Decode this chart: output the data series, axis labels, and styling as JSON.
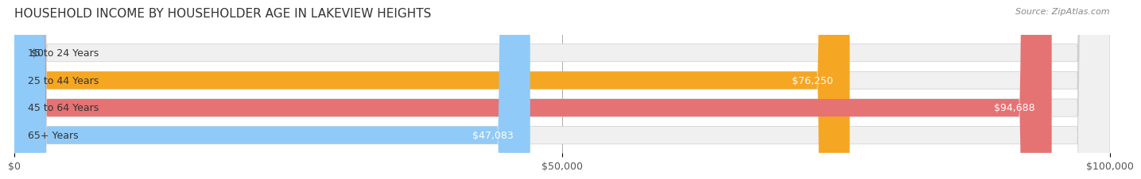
{
  "title": "HOUSEHOLD INCOME BY HOUSEHOLDER AGE IN LAKEVIEW HEIGHTS",
  "source": "Source: ZipAtlas.com",
  "categories": [
    "15 to 24 Years",
    "25 to 44 Years",
    "45 to 64 Years",
    "65+ Years"
  ],
  "values": [
    0,
    76250,
    94688,
    47083
  ],
  "bar_colors": [
    "#f48fb1",
    "#f5a623",
    "#e57373",
    "#90caf9"
  ],
  "bar_edge_colors": [
    "#e91e8c",
    "#e09015",
    "#c0392b",
    "#5b9bd5"
  ],
  "bg_colors": [
    "#f5f5f5",
    "#f5f5f5",
    "#f5f5f5",
    "#f5f5f5"
  ],
  "xlim": [
    0,
    100000
  ],
  "xticks": [
    0,
    50000,
    100000
  ],
  "xtick_labels": [
    "$0",
    "$50,000",
    "$100,000"
  ],
  "value_labels": [
    "$0",
    "$76,250",
    "$94,688",
    "$47,083"
  ],
  "title_fontsize": 11,
  "source_fontsize": 8,
  "label_fontsize": 9,
  "tick_fontsize": 9,
  "bar_height": 0.62,
  "background_color": "#ffffff"
}
